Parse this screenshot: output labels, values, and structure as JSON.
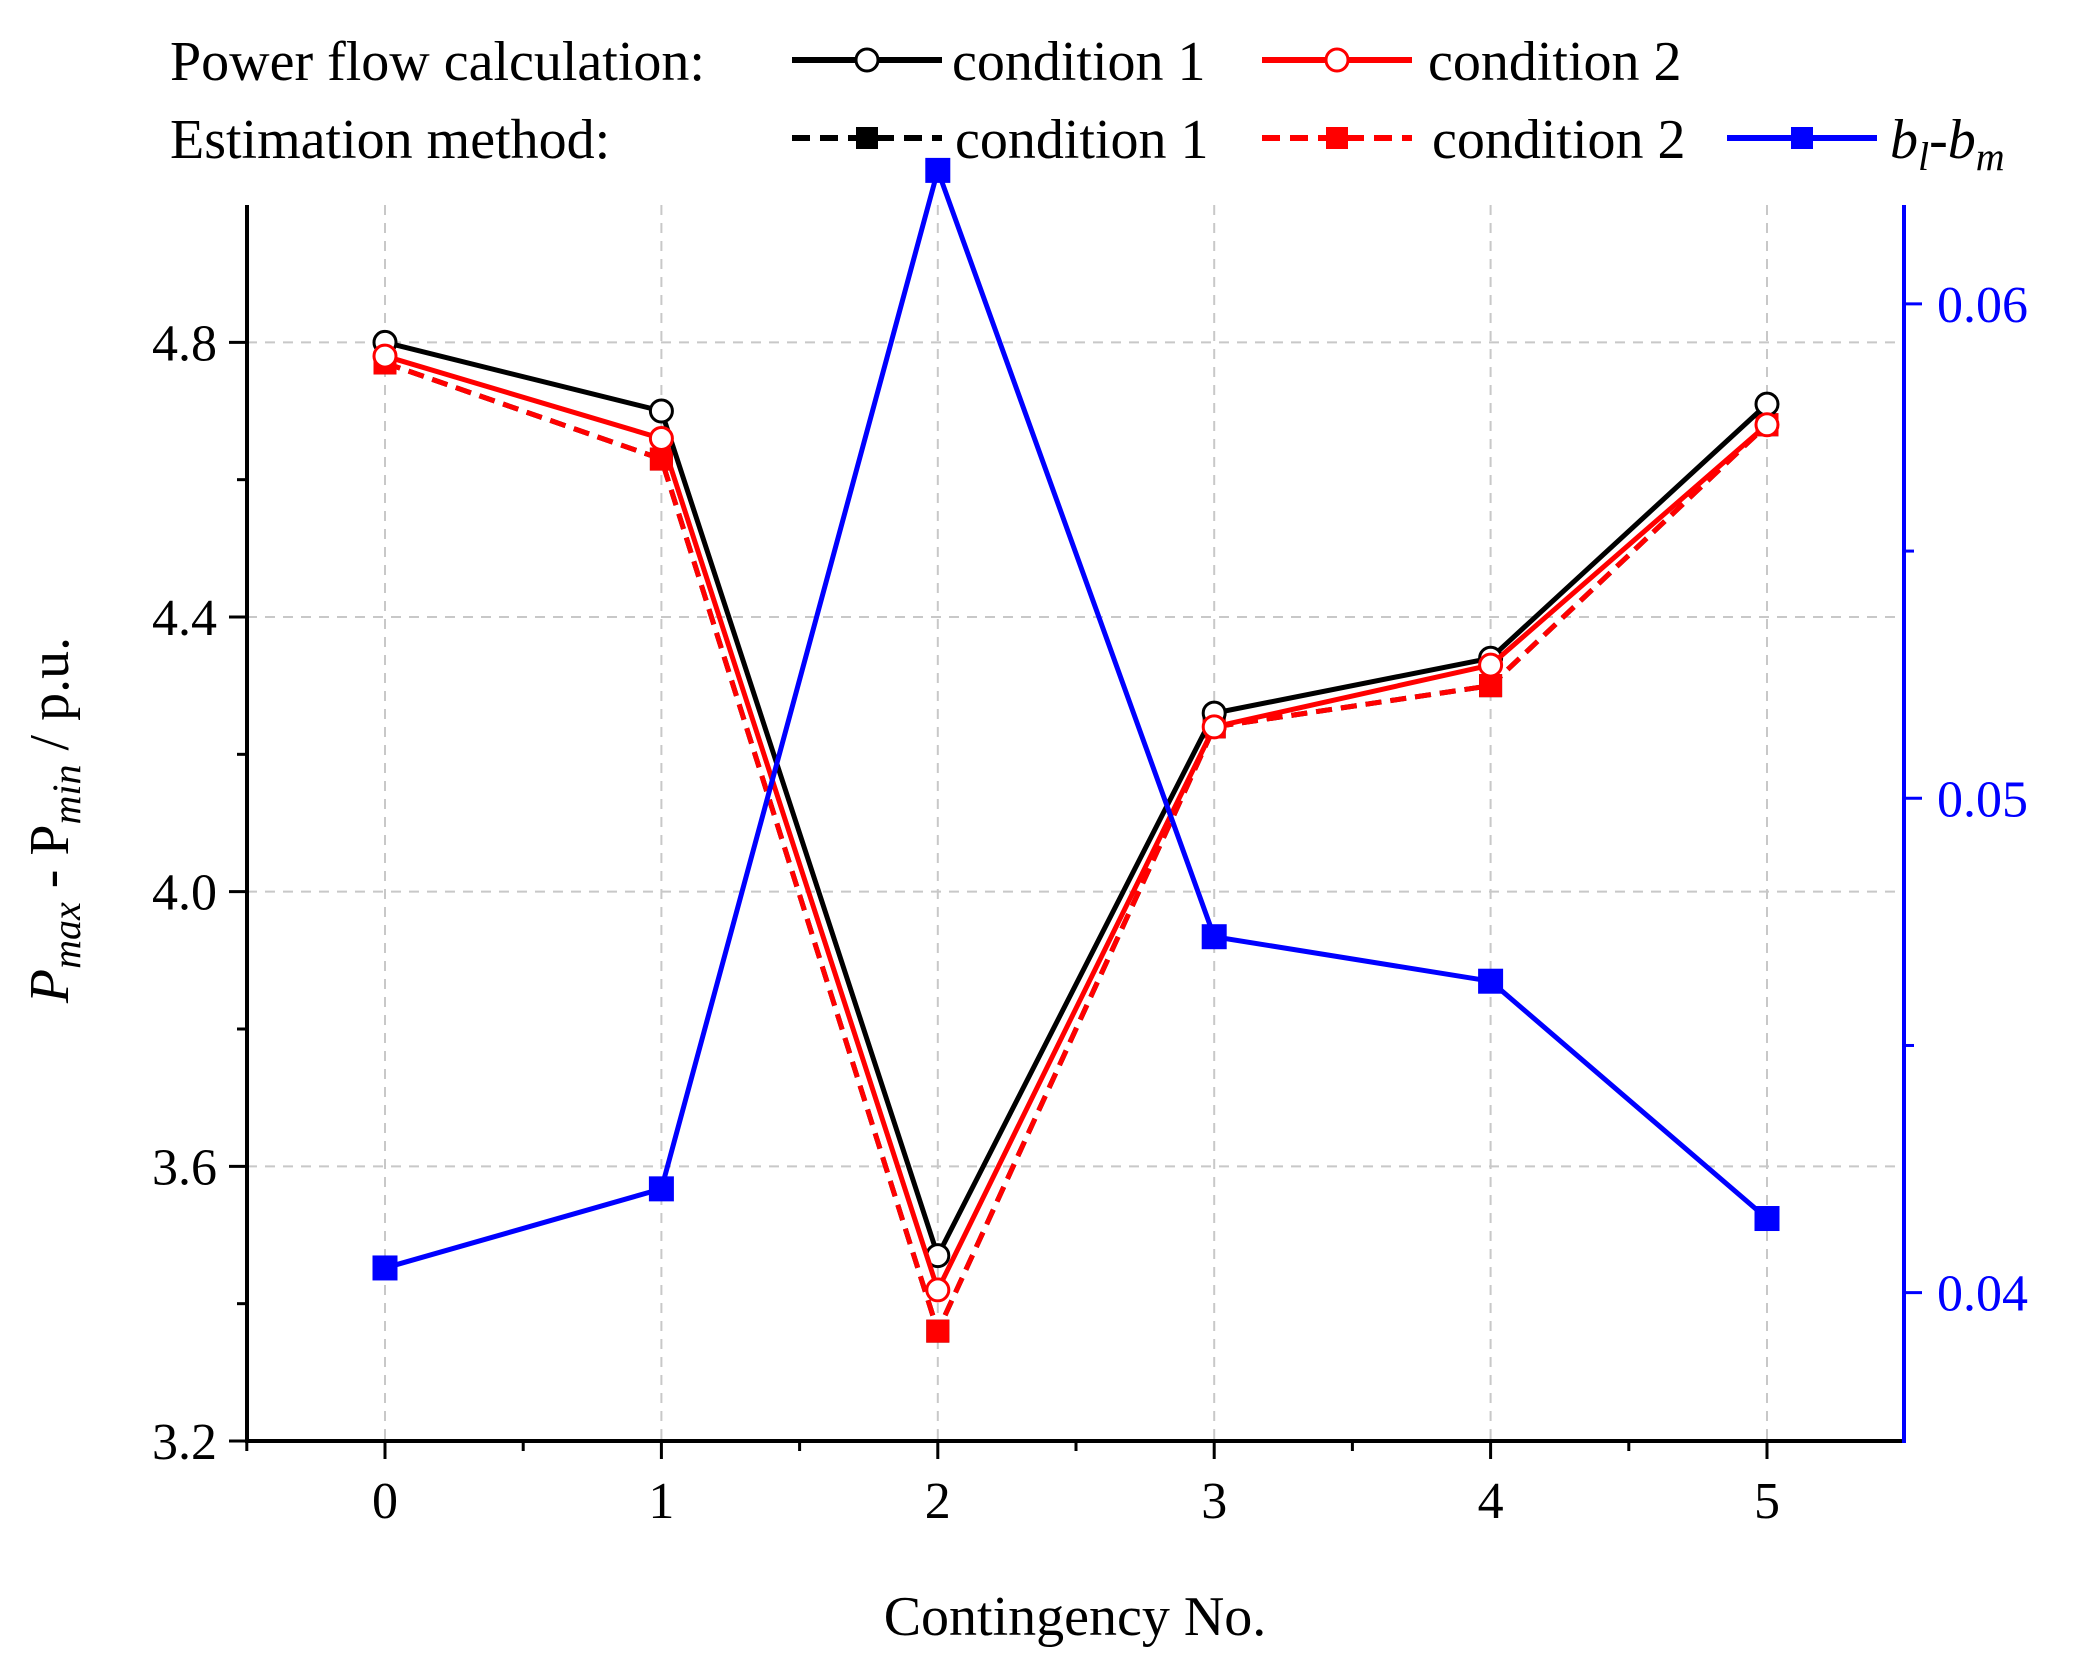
{
  "chart_data": {
    "type": "line",
    "categories": [
      "0",
      "1",
      "2",
      "3",
      "4",
      "5"
    ],
    "x": [
      0,
      1,
      2,
      3,
      4,
      5
    ],
    "xlabel": "Contingency No.",
    "ylabel": {
      "main": "P",
      "sub1": "max",
      "mid": " - P",
      "sub2": "min",
      "unit": " / p.u."
    },
    "ylim": [
      3.2,
      5.0
    ],
    "y_ticks": [
      "3.2",
      "3.6",
      "4.0",
      "4.4",
      "4.8"
    ],
    "y_tick_values": [
      3.2,
      3.6,
      4.0,
      4.4,
      4.8
    ],
    "y2lim": [
      0.037,
      0.062
    ],
    "y2_ticks": [
      "0.04",
      "0.05",
      "0.06"
    ],
    "y2_tick_values": [
      0.04,
      0.05,
      0.06
    ],
    "grid": true,
    "legend": {
      "position": "top",
      "row1_label": "Power flow calculation:",
      "row2_label": "Estimation method:",
      "entries": {
        "pf_c1": "condition 1",
        "pf_c2": "condition 2",
        "est_c1": "condition 1",
        "est_c2": "condition 2",
        "b_main": "b",
        "b_sub1": "l",
        "b_dash": "-b",
        "b_sub2": "m"
      }
    },
    "series": [
      {
        "name": "Power flow calculation: condition 1",
        "axis": "left",
        "color": "#000000",
        "style": "solid",
        "marker": "open-circle",
        "values": [
          4.8,
          4.7,
          3.47,
          4.26,
          4.34,
          4.71
        ]
      },
      {
        "name": "Power flow calculation: condition 2",
        "axis": "left",
        "color": "#ff0000",
        "style": "solid",
        "marker": "open-circle",
        "values": [
          4.78,
          4.66,
          3.42,
          4.24,
          4.33,
          4.68
        ]
      },
      {
        "name": "Estimation method: condition 1",
        "axis": "left",
        "color": "#000000",
        "style": "dashed",
        "marker": "filled-square",
        "values": [
          4.77,
          4.63,
          3.36,
          4.24,
          4.3,
          4.68
        ]
      },
      {
        "name": "Estimation method: condition 2",
        "axis": "left",
        "color": "#ff0000",
        "style": "dashed",
        "marker": "filled-square",
        "values": [
          4.77,
          4.63,
          3.36,
          4.24,
          4.3,
          4.68
        ]
      },
      {
        "name": "b_l-b_m",
        "axis": "right",
        "color": "#0000ff",
        "style": "solid",
        "marker": "filled-square",
        "values": [
          0.0405,
          0.0421,
          0.0627,
          0.0472,
          0.0463,
          0.0415
        ]
      }
    ]
  }
}
